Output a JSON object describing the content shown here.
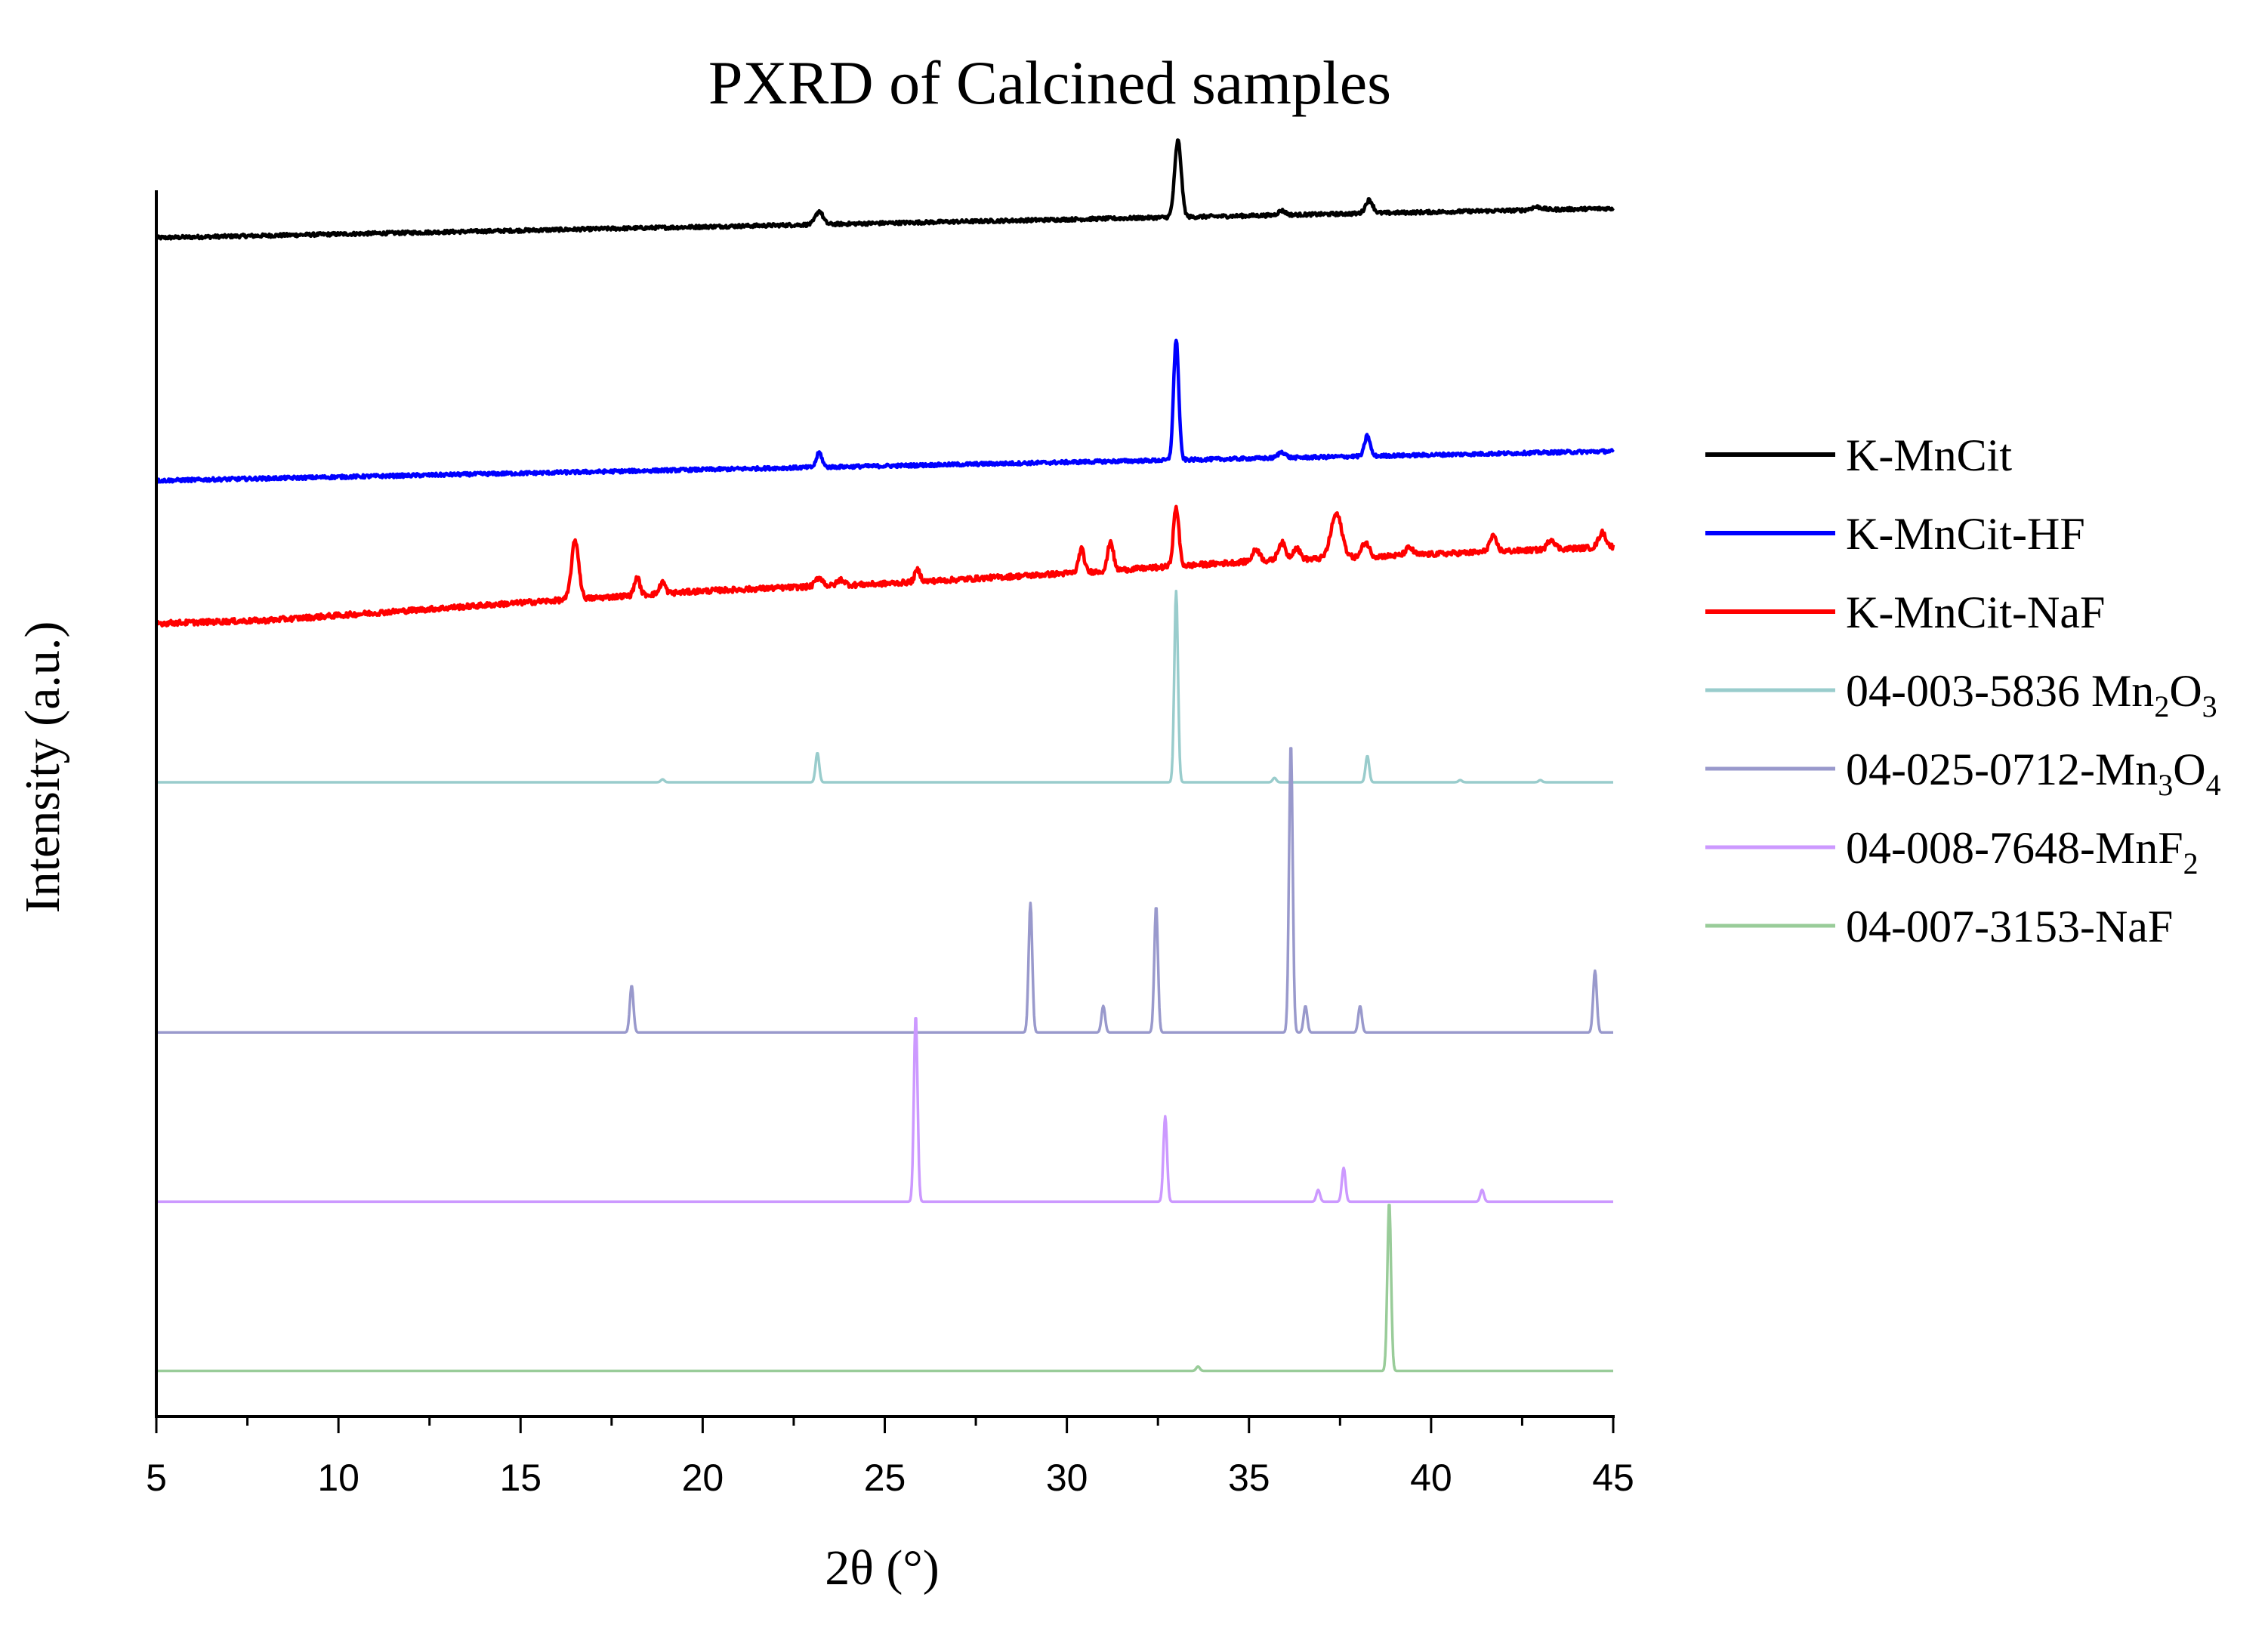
{
  "chart_data": {
    "type": "line",
    "title": "PXRD of Calcined samples",
    "xlabel": "2θ (°)",
    "ylabel": "Intensity (a.u.)",
    "xlim": [
      5,
      45
    ],
    "xticks": [
      5,
      10,
      15,
      20,
      25,
      30,
      35,
      40,
      45
    ],
    "ylim": [
      -0.3,
      8.3
    ],
    "yticks_shown": false,
    "legend_position": "right",
    "series": [
      {
        "name": "K-MnCit",
        "legend_label": [
          "K-MnCit"
        ],
        "color": "#000000",
        "stroke": "thick",
        "noise": 0.012,
        "baseline": [
          [
            5,
            7.7
          ],
          [
            45,
            7.9
          ]
        ],
        "peaks": [
          [
            23.2,
            0.09,
            0.2
          ],
          [
            33.05,
            0.52,
            0.18
          ],
          [
            35.9,
            0.03,
            0.2
          ],
          [
            38.3,
            0.09,
            0.2
          ],
          [
            42.9,
            0.02,
            0.3
          ]
        ]
      },
      {
        "name": "K-MnCit-HF",
        "legend_label": [
          "K-MnCit-HF"
        ],
        "color": "#0000ff",
        "stroke": "thick",
        "noise": 0.012,
        "baseline": [
          [
            5,
            6.05
          ],
          [
            45,
            6.25
          ]
        ],
        "peaks": [
          [
            23.2,
            0.1,
            0.15
          ],
          [
            33.0,
            0.82,
            0.14
          ],
          [
            35.9,
            0.04,
            0.2
          ],
          [
            38.25,
            0.14,
            0.15
          ]
        ]
      },
      {
        "name": "K-MnCit-NaF",
        "legend_label": [
          "K-MnCit-NaF"
        ],
        "color": "#ff0000",
        "stroke": "thick",
        "noise": 0.018,
        "baseline": [
          [
            5,
            5.08
          ],
          [
            8,
            5.1
          ],
          [
            15,
            5.22
          ],
          [
            20,
            5.3
          ],
          [
            25,
            5.35
          ],
          [
            30,
            5.42
          ],
          [
            35,
            5.5
          ],
          [
            40,
            5.55
          ],
          [
            45,
            5.6
          ]
        ],
        "peaks": [
          [
            16.5,
            0.4,
            0.2
          ],
          [
            18.2,
            0.12,
            0.15
          ],
          [
            18.9,
            0.08,
            0.15
          ],
          [
            23.2,
            0.06,
            0.2
          ],
          [
            23.8,
            0.04,
            0.2
          ],
          [
            25.9,
            0.08,
            0.15
          ],
          [
            30.4,
            0.16,
            0.15
          ],
          [
            31.2,
            0.2,
            0.15
          ],
          [
            33.0,
            0.4,
            0.15
          ],
          [
            35.2,
            0.08,
            0.2
          ],
          [
            35.9,
            0.12,
            0.2
          ],
          [
            36.3,
            0.08,
            0.2
          ],
          [
            37.4,
            0.3,
            0.3
          ],
          [
            38.2,
            0.1,
            0.2
          ],
          [
            39.4,
            0.05,
            0.2
          ],
          [
            41.7,
            0.1,
            0.2
          ],
          [
            43.3,
            0.07,
            0.2
          ],
          [
            44.7,
            0.1,
            0.2
          ]
        ]
      },
      {
        "name": "04-003-5836 Mn2O3",
        "legend_label": [
          "04-003-5836 Mn",
          "2",
          "O",
          "3"
        ],
        "color": "#99cccc",
        "stroke": "thin",
        "noise": 0.0,
        "baseline": [
          [
            5,
            4.0
          ],
          [
            45,
            4.0
          ]
        ],
        "peaks": [
          [
            18.9,
            0.02,
            0.1
          ],
          [
            23.15,
            0.2,
            0.1
          ],
          [
            33.0,
            1.3,
            0.1
          ],
          [
            35.7,
            0.03,
            0.1
          ],
          [
            38.25,
            0.18,
            0.1
          ],
          [
            40.8,
            0.015,
            0.1
          ],
          [
            43.0,
            0.015,
            0.1
          ]
        ]
      },
      {
        "name": "04-025-0712-Mn3O4",
        "legend_label": [
          "04-025-0712-Mn",
          "3",
          "O",
          "4"
        ],
        "color": "#9999cc",
        "stroke": "thin",
        "noise": 0.0,
        "baseline": [
          [
            5,
            2.3
          ],
          [
            45,
            2.3
          ]
        ],
        "peaks": [
          [
            18.05,
            0.32,
            0.1
          ],
          [
            29.0,
            0.88,
            0.1
          ],
          [
            31.0,
            0.18,
            0.1
          ],
          [
            32.45,
            0.86,
            0.1
          ],
          [
            36.15,
            1.97,
            0.1
          ],
          [
            36.55,
            0.18,
            0.1
          ],
          [
            38.05,
            0.18,
            0.1
          ],
          [
            44.5,
            0.42,
            0.1
          ]
        ]
      },
      {
        "name": "04-008-7648-MnF2",
        "legend_label": [
          "04-008-7648-MnF",
          "2"
        ],
        "color": "#cc99ff",
        "stroke": "thin",
        "noise": 0.0,
        "baseline": [
          [
            5,
            1.15
          ],
          [
            45,
            1.15
          ]
        ],
        "peaks": [
          [
            25.85,
            1.27,
            0.1
          ],
          [
            32.7,
            0.58,
            0.1
          ],
          [
            36.9,
            0.08,
            0.1
          ],
          [
            37.6,
            0.23,
            0.1
          ],
          [
            41.4,
            0.08,
            0.1
          ]
        ]
      },
      {
        "name": "04-007-3153-NaF",
        "legend_label": [
          "04-007-3153-NaF"
        ],
        "color": "#99cc99",
        "stroke": "thin",
        "noise": 0.0,
        "baseline": [
          [
            5,
            0.0
          ],
          [
            45,
            0.0
          ]
        ],
        "peaks": [
          [
            33.6,
            0.03,
            0.1
          ],
          [
            38.85,
            1.15,
            0.1
          ]
        ]
      }
    ]
  }
}
